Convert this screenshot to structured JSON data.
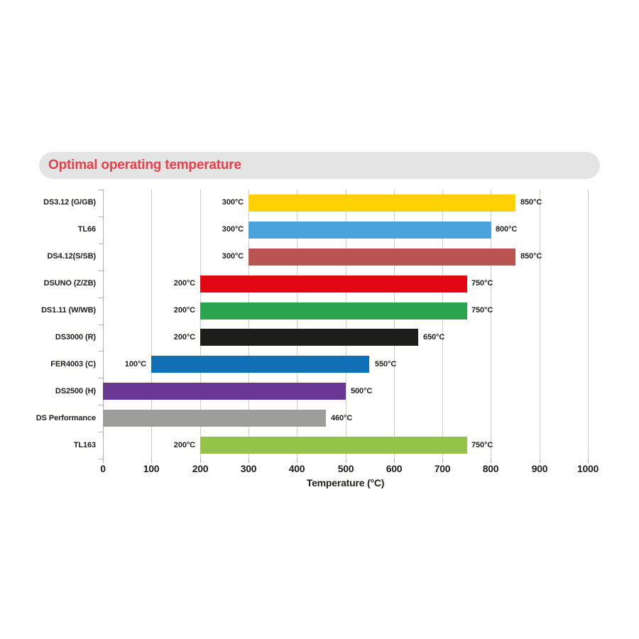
{
  "header": {
    "title": "Optimal operating temperature",
    "title_color": "#e7404d",
    "pill_background": "#e4e4e4"
  },
  "axis_style": {
    "grid_color": "#cccccc",
    "axis_color": "#b0b0b0",
    "tick_color": "#b0b0b0",
    "text_color": "#1d1d1b"
  },
  "chart_data": {
    "type": "bar",
    "orientation": "horizontal",
    "title": "Optimal operating temperature",
    "xlabel": "Temperature (°C)",
    "xlim": [
      0,
      1000
    ],
    "xticks": [
      0,
      100,
      200,
      300,
      400,
      500,
      600,
      700,
      800,
      900,
      1000
    ],
    "grid": true,
    "legend": false,
    "categories": [
      "DS3.12 (G/GB)",
      "TL66",
      "DS4.12(S/SB)",
      "DSUNO (Z/ZB)",
      "DS1.11 (W/WB)",
      "DS3000 (R)",
      "FER4003 (C)",
      "DS2500 (H)",
      "DS Performance",
      "TL163"
    ],
    "bars": [
      {
        "label": "DS3.12 (G/GB)",
        "start": 300,
        "end": 850,
        "color": "#fdd104",
        "start_label": "300°C",
        "end_label": "850°C"
      },
      {
        "label": "TL66",
        "start": 300,
        "end": 800,
        "color": "#4aa3dc",
        "start_label": "300°C",
        "end_label": "800°C"
      },
      {
        "label": "DS4.12(S/SB)",
        "start": 300,
        "end": 850,
        "color": "#b95452",
        "start_label": "300°C",
        "end_label": "850°C"
      },
      {
        "label": "DSUNO (Z/ZB)",
        "start": 200,
        "end": 750,
        "color": "#e30613",
        "start_label": "200°C",
        "end_label": "750°C"
      },
      {
        "label": "DS1.11 (W/WB)",
        "start": 200,
        "end": 750,
        "color": "#2ba44e",
        "start_label": "200°C",
        "end_label": "750°C"
      },
      {
        "label": "DS3000 (R)",
        "start": 200,
        "end": 650,
        "color": "#1d1d1b",
        "start_label": "200°C",
        "end_label": "650°C"
      },
      {
        "label": "FER4003 (C)",
        "start": 100,
        "end": 550,
        "color": "#1170b5",
        "start_label": "100°C",
        "end_label": "550°C"
      },
      {
        "label": "DS2500 (H)",
        "start": 0,
        "end": 500,
        "color": "#6a3894",
        "start_label": null,
        "end_label": "500°C"
      },
      {
        "label": "DS Performance",
        "start": 0,
        "end": 460,
        "color": "#9d9d9c",
        "start_label": null,
        "end_label": "460°C"
      },
      {
        "label": "TL163",
        "start": 200,
        "end": 750,
        "color": "#94c347",
        "start_label": "200°C",
        "end_label": "750°C"
      }
    ]
  }
}
